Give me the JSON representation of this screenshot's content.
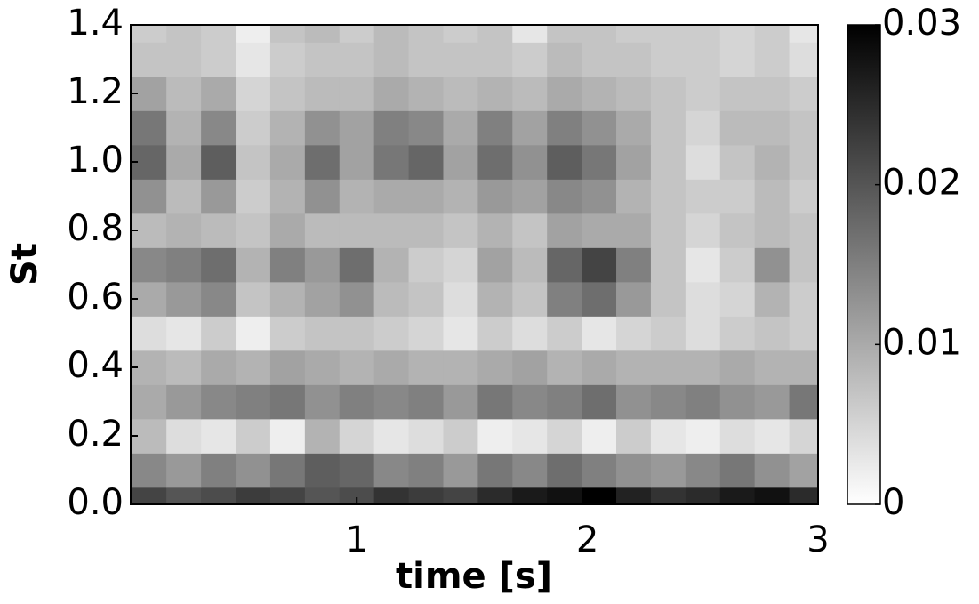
{
  "chart_data": {
    "type": "contour",
    "xlabel": "time [s]",
    "ylabel": "St",
    "x": [
      0.1,
      0.25,
      0.4,
      0.55,
      0.7,
      0.85,
      1.0,
      1.15,
      1.3,
      1.45,
      1.6,
      1.75,
      1.9,
      2.05,
      2.2,
      2.35,
      2.5,
      2.65,
      2.8,
      2.95
    ],
    "y": [
      0,
      0.1,
      0.2,
      0.3,
      0.4,
      0.5,
      0.6,
      0.7,
      0.8,
      0.9,
      1.0,
      1.1,
      1.2,
      1.3,
      1.4
    ],
    "z": [
      [
        0.022,
        0.02,
        0.021,
        0.023,
        0.022,
        0.02,
        0.021,
        0.024,
        0.023,
        0.022,
        0.025,
        0.027,
        0.028,
        0.03,
        0.026,
        0.024,
        0.025,
        0.027,
        0.028,
        0.025
      ],
      [
        0.014,
        0.012,
        0.015,
        0.013,
        0.016,
        0.019,
        0.018,
        0.014,
        0.015,
        0.012,
        0.016,
        0.014,
        0.017,
        0.015,
        0.013,
        0.012,
        0.014,
        0.016,
        0.013,
        0.011
      ],
      [
        0.008,
        0.004,
        0.003,
        0.006,
        0.002,
        0.009,
        0.005,
        0.003,
        0.004,
        0.006,
        0.002,
        0.003,
        0.005,
        0.002,
        0.006,
        0.003,
        0.002,
        0.004,
        0.003,
        0.005
      ],
      [
        0.01,
        0.012,
        0.014,
        0.015,
        0.016,
        0.013,
        0.015,
        0.014,
        0.015,
        0.012,
        0.016,
        0.014,
        0.015,
        0.017,
        0.013,
        0.014,
        0.015,
        0.013,
        0.012,
        0.016
      ],
      [
        0.009,
        0.008,
        0.01,
        0.009,
        0.011,
        0.01,
        0.009,
        0.01,
        0.009,
        0.009,
        0.01,
        0.011,
        0.009,
        0.01,
        0.009,
        0.009,
        0.009,
        0.01,
        0.009,
        0.009
      ],
      [
        0.004,
        0.003,
        0.006,
        0.002,
        0.006,
        0.007,
        0.007,
        0.006,
        0.005,
        0.003,
        0.006,
        0.004,
        0.006,
        0.003,
        0.005,
        0.006,
        0.004,
        0.006,
        0.007,
        0.006
      ],
      [
        0.01,
        0.012,
        0.014,
        0.007,
        0.009,
        0.011,
        0.013,
        0.008,
        0.007,
        0.004,
        0.009,
        0.007,
        0.015,
        0.017,
        0.012,
        0.007,
        0.004,
        0.005,
        0.009,
        0.006
      ],
      [
        0.014,
        0.015,
        0.017,
        0.009,
        0.015,
        0.012,
        0.017,
        0.009,
        0.006,
        0.005,
        0.011,
        0.008,
        0.018,
        0.022,
        0.015,
        0.007,
        0.003,
        0.006,
        0.013,
        0.007
      ],
      [
        0.008,
        0.009,
        0.008,
        0.007,
        0.01,
        0.008,
        0.008,
        0.008,
        0.008,
        0.007,
        0.009,
        0.007,
        0.011,
        0.01,
        0.01,
        0.007,
        0.005,
        0.007,
        0.008,
        0.007
      ],
      [
        0.013,
        0.008,
        0.012,
        0.006,
        0.009,
        0.013,
        0.009,
        0.01,
        0.01,
        0.009,
        0.012,
        0.011,
        0.014,
        0.013,
        0.009,
        0.007,
        0.006,
        0.006,
        0.008,
        0.006
      ],
      [
        0.018,
        0.01,
        0.019,
        0.007,
        0.01,
        0.017,
        0.011,
        0.016,
        0.018,
        0.011,
        0.017,
        0.013,
        0.019,
        0.016,
        0.011,
        0.007,
        0.004,
        0.007,
        0.009,
        0.007
      ],
      [
        0.016,
        0.009,
        0.014,
        0.006,
        0.009,
        0.013,
        0.011,
        0.015,
        0.014,
        0.01,
        0.015,
        0.011,
        0.015,
        0.013,
        0.01,
        0.007,
        0.005,
        0.008,
        0.008,
        0.007
      ],
      [
        0.011,
        0.008,
        0.01,
        0.005,
        0.007,
        0.008,
        0.008,
        0.01,
        0.009,
        0.008,
        0.009,
        0.008,
        0.01,
        0.009,
        0.008,
        0.007,
        0.006,
        0.007,
        0.007,
        0.006
      ],
      [
        0.007,
        0.007,
        0.006,
        0.003,
        0.006,
        0.007,
        0.007,
        0.008,
        0.007,
        0.007,
        0.007,
        0.006,
        0.008,
        0.007,
        0.007,
        0.006,
        0.006,
        0.005,
        0.006,
        0.004
      ],
      [
        0.006,
        0.007,
        0.006,
        0.002,
        0.007,
        0.008,
        0.006,
        0.008,
        0.007,
        0.006,
        0.007,
        0.003,
        0.007,
        0.007,
        0.006,
        0.006,
        0.006,
        0.005,
        0.006,
        0.003
      ]
    ],
    "xlim": [
      0.02,
      3
    ],
    "xticks": [
      1,
      2,
      3
    ],
    "ylim": [
      0,
      1.4
    ],
    "yticks": [
      {
        "value": 0,
        "label": "0.0"
      },
      0.2,
      0.4,
      0.6,
      0.8,
      {
        "value": 1,
        "label": "1.0"
      },
      1.2,
      1.4
    ],
    "clim": [
      0,
      0.03
    ],
    "cticks": [
      0,
      0.01,
      0.02,
      0.03
    ],
    "colormap": [
      "#ffffff",
      "#000000"
    ]
  }
}
